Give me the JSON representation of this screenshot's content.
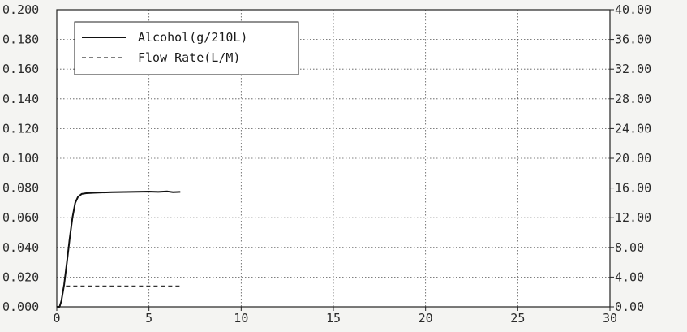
{
  "chart_data": {
    "type": "line",
    "title": "",
    "xlabel": "",
    "ylabel": "",
    "y2label": "",
    "xlim": [
      0,
      30
    ],
    "ylim": [
      0,
      0.2
    ],
    "y2lim": [
      0,
      40
    ],
    "x_ticks": [
      "0",
      "5",
      "10",
      "15",
      "20",
      "25",
      "30"
    ],
    "y_ticks": [
      "0.000",
      "0.020",
      "0.040",
      "0.060",
      "0.080",
      "0.100",
      "0.120",
      "0.140",
      "0.160",
      "0.180",
      "0.200"
    ],
    "y2_ticks": [
      "0.00",
      "4.00",
      "8.00",
      "12.00",
      "16.00",
      "20.00",
      "24.00",
      "28.00",
      "32.00",
      "36.00",
      "40.00"
    ],
    "grid": true,
    "legend_position": "top-left",
    "series": [
      {
        "name": "Alcohol(g/210L)",
        "axis": "left",
        "style": "solid",
        "color": "#111111",
        "points": [
          [
            0.0,
            0.0
          ],
          [
            0.15,
            0.0
          ],
          [
            0.25,
            0.004
          ],
          [
            0.4,
            0.015
          ],
          [
            0.55,
            0.03
          ],
          [
            0.7,
            0.046
          ],
          [
            0.85,
            0.06
          ],
          [
            1.0,
            0.07
          ],
          [
            1.15,
            0.074
          ],
          [
            1.35,
            0.076
          ],
          [
            1.6,
            0.0765
          ],
          [
            2.0,
            0.0768
          ],
          [
            3.0,
            0.0772
          ],
          [
            4.0,
            0.0774
          ],
          [
            5.0,
            0.0776
          ],
          [
            5.5,
            0.0774
          ],
          [
            6.0,
            0.0777
          ],
          [
            6.3,
            0.0772
          ],
          [
            6.7,
            0.0774
          ]
        ]
      },
      {
        "name": "Flow Rate(L/M)",
        "axis": "right",
        "style": "dashed",
        "color": "#333333",
        "points": [
          [
            0.5,
            2.8
          ],
          [
            2.0,
            2.8
          ],
          [
            4.0,
            2.8
          ],
          [
            5.5,
            2.8
          ],
          [
            6.7,
            2.8
          ]
        ]
      }
    ]
  }
}
